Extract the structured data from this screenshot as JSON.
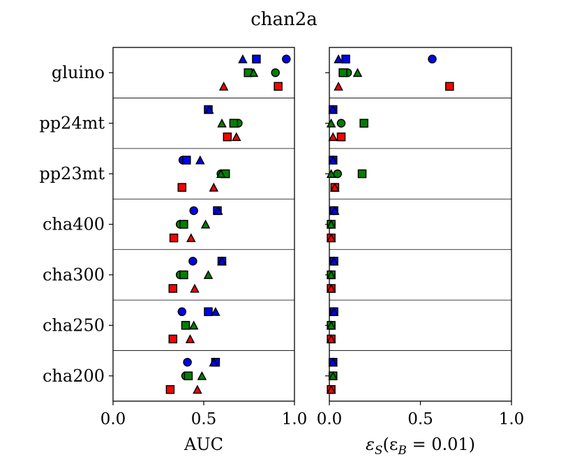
{
  "chart_data": {
    "type": "scatter",
    "title": "chan2a",
    "categories": [
      "gluino",
      "pp24mt",
      "pp23mt",
      "cha400",
      "cha300",
      "cha250",
      "cha200"
    ],
    "marker_legend": {
      "colors": {
        "blue": "#0000ff",
        "green": "#008000",
        "red": "#ff0000"
      },
      "shapes": [
        "circle",
        "square",
        "triangle"
      ]
    },
    "panels": [
      {
        "xlabel": "AUC",
        "xlim": [
          0.0,
          1.0
        ],
        "xticks": [
          "0.0",
          "0.5",
          "1.0"
        ],
        "grid": false,
        "points": {
          "gluino": {
            "blue": {
              "circle": 0.955,
              "square": 0.79,
              "triangle": 0.715
            },
            "green": {
              "circle": 0.895,
              "square": 0.745,
              "triangle": 0.775
            },
            "red": {
              "square": 0.91,
              "triangle": 0.61
            }
          },
          "pp24mt": {
            "blue": {
              "square": 0.525,
              "triangle": 0.53
            },
            "green": {
              "circle": 0.69,
              "square": 0.665,
              "triangle": 0.6
            },
            "red": {
              "square": 0.63,
              "triangle": 0.68
            }
          },
          "pp23mt": {
            "blue": {
              "circle": 0.385,
              "square": 0.405,
              "triangle": 0.48
            },
            "green": {
              "circle": 0.595,
              "square": 0.62,
              "triangle": 0.595
            },
            "red": {
              "square": 0.38,
              "triangle": 0.555
            }
          },
          "cha400": {
            "blue": {
              "circle": 0.445,
              "square": 0.575,
              "triangle": 0.58
            },
            "green": {
              "circle": 0.37,
              "square": 0.39,
              "triangle": 0.51
            },
            "red": {
              "square": 0.335,
              "triangle": 0.43
            }
          },
          "cha300": {
            "blue": {
              "circle": 0.44,
              "square": 0.6,
              "triangle": 0.6
            },
            "green": {
              "circle": 0.37,
              "square": 0.39,
              "triangle": 0.525
            },
            "red": {
              "square": 0.33,
              "triangle": 0.45
            }
          },
          "cha250": {
            "blue": {
              "circle": 0.38,
              "square": 0.525,
              "triangle": 0.565
            },
            "green": {
              "circle": 0.4,
              "square": 0.4,
              "triangle": 0.445
            },
            "red": {
              "square": 0.33,
              "triangle": 0.425
            }
          },
          "cha200": {
            "blue": {
              "circle": 0.41,
              "square": 0.565,
              "triangle": 0.555
            },
            "green": {
              "circle": 0.4,
              "square": 0.415,
              "triangle": 0.49
            },
            "red": {
              "square": 0.315,
              "triangle": 0.465
            }
          }
        }
      },
      {
        "xlabel_prefix": "ε",
        "xlabel_sub1": "S",
        "xlabel_mid": "(ε",
        "xlabel_sub2": "B",
        "xlabel_suffix": " = 0.01)",
        "xlim": [
          0.0,
          1.0
        ],
        "xticks": [
          "0.0",
          "0.5",
          "1.0"
        ],
        "grid": false,
        "points": {
          "gluino": {
            "blue": {
              "circle": 0.565,
              "square": 0.09,
              "triangle": 0.05
            },
            "green": {
              "circle": 0.1,
              "square": 0.075,
              "triangle": 0.155
            },
            "red": {
              "square": 0.66,
              "triangle": 0.05
            }
          },
          "pp24mt": {
            "blue": {
              "square": 0.02,
              "triangle": 0.02
            },
            "green": {
              "circle": 0.065,
              "square": 0.19,
              "triangle": 0.01
            },
            "red": {
              "square": 0.065,
              "triangle": 0.02
            }
          },
          "pp23mt": {
            "blue": {
              "circle": 0.02,
              "square": 0.02,
              "triangle": 0.02
            },
            "green": {
              "circle": 0.045,
              "square": 0.18,
              "triangle": 0.01
            },
            "red": {
              "square": 0.03,
              "triangle": 0.03
            }
          },
          "cha400": {
            "blue": {
              "circle": 0.025,
              "square": 0.025,
              "triangle": 0.03
            },
            "green": {
              "circle": 0.01,
              "square": 0.01,
              "triangle": 0.01
            },
            "red": {
              "square": 0.01,
              "triangle": 0.01
            }
          },
          "cha300": {
            "blue": {
              "circle": 0.025,
              "square": 0.025,
              "triangle": 0.025
            },
            "green": {
              "circle": 0.01,
              "square": 0.01,
              "triangle": 0.01
            },
            "red": {
              "square": 0.01,
              "triangle": 0.01
            }
          },
          "cha250": {
            "blue": {
              "circle": 0.025,
              "square": 0.025,
              "triangle": 0.025
            },
            "green": {
              "circle": 0.01,
              "square": 0.01,
              "triangle": 0.01
            },
            "red": {
              "square": 0.01,
              "triangle": 0.01
            }
          },
          "cha200": {
            "blue": {
              "circle": 0.02,
              "square": 0.02,
              "triangle": 0.02
            },
            "green": {
              "circle": 0.02,
              "square": 0.02,
              "triangle": 0.02
            },
            "red": {
              "square": 0.01,
              "triangle": 0.01
            }
          }
        }
      }
    ]
  }
}
